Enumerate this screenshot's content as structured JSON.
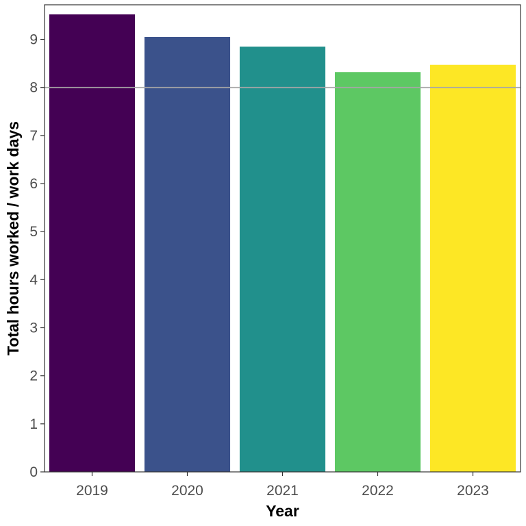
{
  "chart_data": {
    "type": "bar",
    "title": "",
    "xlabel": "Year",
    "ylabel": "Total hours worked / work days",
    "categories": [
      "2019",
      "2020",
      "2021",
      "2022",
      "2023"
    ],
    "values": [
      9.52,
      9.05,
      8.85,
      8.32,
      8.47
    ],
    "colors": [
      "#440154",
      "#3B528B",
      "#21908C",
      "#5DC863",
      "#FDE725"
    ],
    "ylim": [
      0,
      9.72
    ],
    "yticks": [
      0,
      1,
      2,
      3,
      4,
      5,
      6,
      7,
      8,
      9
    ],
    "reference_line": {
      "y": 8,
      "color": "#a6a6a6"
    },
    "grid": false,
    "legend": "none"
  }
}
